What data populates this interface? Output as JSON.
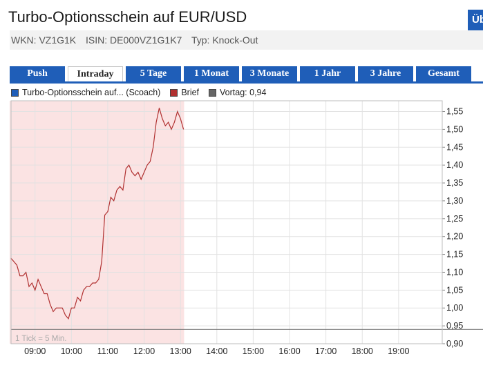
{
  "header": {
    "title": "Turbo-Optionsschein auf EUR/USD",
    "corner_button_label": "Üb",
    "wkn": "WKN: VZ1G1K",
    "isin": "ISIN: DE000VZ1G1K7",
    "typ": "Typ: Knock-Out"
  },
  "tabs": [
    {
      "label": "Push",
      "active": false
    },
    {
      "label": "Intraday",
      "active": true
    },
    {
      "label": "5 Tage",
      "active": false
    },
    {
      "label": "1 Monat",
      "active": false
    },
    {
      "label": "3 Monate",
      "active": false
    },
    {
      "label": "1 Jahr",
      "active": false
    },
    {
      "label": "3 Jahre",
      "active": false
    },
    {
      "label": "Gesamt",
      "active": false
    }
  ],
  "legend": [
    {
      "label": "Turbo-Optionsschein auf... (Scoach)",
      "color": "#1f5eb8"
    },
    {
      "label": "Brief",
      "color": "#b03030"
    },
    {
      "label": "Vortag: 0,94",
      "color": "#666666"
    }
  ],
  "chart_data": {
    "type": "line",
    "tick_note": "1 Tick = 5 Min.",
    "x_ticks": [
      "09:00",
      "10:00",
      "11:00",
      "12:00",
      "13:00",
      "14:00",
      "15:00",
      "16:00",
      "17:00",
      "18:00",
      "19:00"
    ],
    "y_ticks": [
      "0,90",
      "0,95",
      "1,00",
      "1,05",
      "1,10",
      "1,15",
      "1,20",
      "1,25",
      "1,30",
      "1,35",
      "1,40",
      "1,45",
      "1,50",
      "1,55"
    ],
    "ylim": [
      0.9,
      1.58
    ],
    "xlim_hours": [
      8.34,
      20.2
    ],
    "reference_line": 0.94,
    "session_shading": [
      8.3,
      13.1
    ],
    "grid": true,
    "series": [
      {
        "name": "Brief",
        "color": "#b03030",
        "x": [
          "08:20",
          "08:25",
          "08:30",
          "08:35",
          "08:40",
          "08:45",
          "08:50",
          "08:55",
          "09:00",
          "09:05",
          "09:10",
          "09:15",
          "09:20",
          "09:25",
          "09:30",
          "09:35",
          "09:40",
          "09:45",
          "09:50",
          "09:55",
          "10:00",
          "10:05",
          "10:10",
          "10:15",
          "10:20",
          "10:25",
          "10:30",
          "10:35",
          "10:40",
          "10:45",
          "10:50",
          "10:55",
          "11:00",
          "11:05",
          "11:10",
          "11:15",
          "11:20",
          "11:25",
          "11:30",
          "11:35",
          "11:40",
          "11:45",
          "11:50",
          "11:55",
          "12:00",
          "12:05",
          "12:10",
          "12:15",
          "12:20",
          "12:25",
          "12:30",
          "12:35",
          "12:40",
          "12:45",
          "12:50",
          "12:55",
          "13:00",
          "13:05"
        ],
        "values": [
          1.14,
          1.13,
          1.12,
          1.09,
          1.09,
          1.1,
          1.06,
          1.07,
          1.05,
          1.08,
          1.06,
          1.04,
          1.04,
          1.01,
          0.99,
          1.0,
          1.0,
          1.0,
          0.98,
          0.97,
          1.0,
          1.0,
          1.03,
          1.02,
          1.05,
          1.06,
          1.06,
          1.07,
          1.07,
          1.08,
          1.13,
          1.26,
          1.27,
          1.31,
          1.3,
          1.33,
          1.34,
          1.33,
          1.39,
          1.4,
          1.38,
          1.37,
          1.38,
          1.36,
          1.38,
          1.4,
          1.41,
          1.45,
          1.52,
          1.56,
          1.53,
          1.51,
          1.52,
          1.5,
          1.52,
          1.55,
          1.53,
          1.5
        ]
      }
    ]
  }
}
